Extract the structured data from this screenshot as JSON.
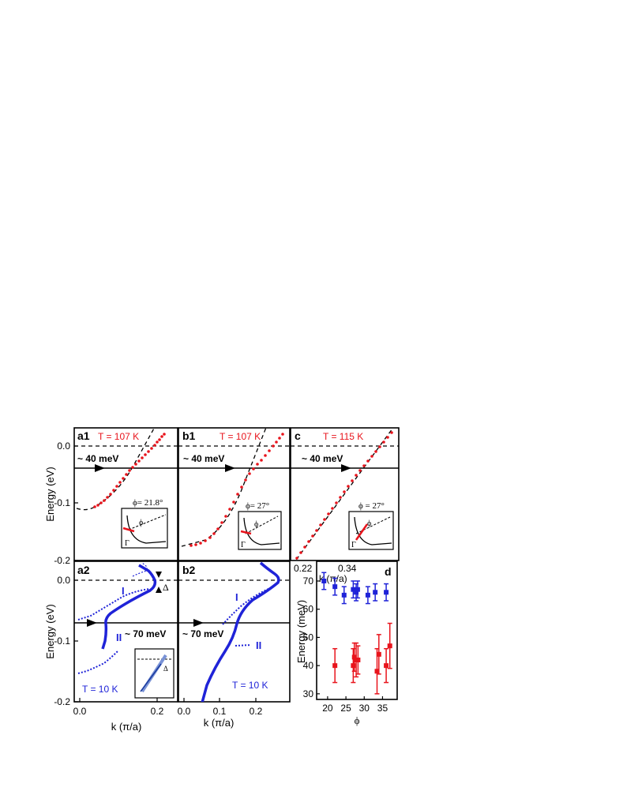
{
  "colors": {
    "red": "#e8141c",
    "blue": "#1f23d8",
    "lightblue": "#7a93d6",
    "navy": "#1a3ba0",
    "black": "#000000"
  },
  "labels": {
    "energy_ev": "Energy (eV)",
    "energy_mev": "Energy (meV)",
    "k_label": "k (π/a)",
    "k_label_b2": "k  (π/a)",
    "phi": "ϕ",
    "gamma": "Γ",
    "delta": "Δ",
    "mev40": "~ 40 meV",
    "mev70": "~ 70 meV",
    "roman1": "I",
    "roman2": "II"
  },
  "panels": {
    "a1": {
      "letter": "a1",
      "temp": "T = 107 K",
      "phi_text": "ϕ= 21.8°"
    },
    "b1": {
      "letter": "b1",
      "temp": "T = 107 K",
      "phi_text": "ϕ= 27°"
    },
    "c": {
      "letter": "c",
      "temp": "T = 115 K",
      "phi_text": "ϕ = 27°",
      "k_ticks": [
        "0.22",
        "0.34"
      ],
      "k_label": "k (π/a)"
    },
    "a2": {
      "letter": "a2",
      "temp": "T = 10 K"
    },
    "b2": {
      "letter": "b2",
      "temp": "T = 10 K"
    },
    "d": {
      "letter": "d"
    }
  },
  "ticks": {
    "energy_top": [
      "0.0",
      "-0.1",
      "-0.2"
    ],
    "energy_bottom": [
      "0.0",
      "-0.1",
      "-0.2"
    ],
    "k_a2": [
      "0.0",
      "0.2"
    ],
    "k_b2": [
      "0.0",
      "0.1",
      "0.2"
    ]
  },
  "chart_data": [
    {
      "type": "scatter",
      "panel": "a1",
      "xlabel": "",
      "ylabel": "Energy (eV)",
      "ylim": [
        -0.12,
        0.03
      ],
      "series": [
        {
          "color": "red",
          "x": [
            0.05,
            0.07,
            0.09,
            0.11,
            0.13,
            0.15,
            0.17,
            0.19,
            0.21,
            0.23,
            0.25
          ],
          "y": [
            -0.11,
            -0.1,
            -0.085,
            -0.068,
            -0.052,
            -0.036,
            -0.022,
            -0.008,
            0.0,
            0.008,
            0.016
          ]
        }
      ]
    },
    {
      "type": "scatter",
      "panel": "b1",
      "ylim": [
        -0.2,
        0.03
      ],
      "series": [
        {
          "color": "red",
          "x": [
            0.02,
            0.05,
            0.08,
            0.11,
            0.14,
            0.17,
            0.2,
            0.23,
            0.26
          ],
          "y": [
            -0.175,
            -0.16,
            -0.14,
            -0.11,
            -0.08,
            -0.05,
            -0.025,
            -0.005,
            0.015
          ]
        }
      ]
    },
    {
      "type": "scatter",
      "panel": "c",
      "xlabel": "k (π/a)",
      "xticks": [
        "0.22",
        "0.34"
      ],
      "ylim": [
        -0.2,
        0.03
      ],
      "series": [
        {
          "color": "red",
          "x": [
            0.22,
            0.24,
            0.26,
            0.28,
            0.3,
            0.32,
            0.34
          ],
          "y": [
            -0.2,
            -0.16,
            -0.12,
            -0.08,
            -0.045,
            -0.01,
            0.02
          ]
        }
      ]
    },
    {
      "type": "scatter",
      "panel": "a2",
      "xlabel": "k (π/a)",
      "ylabel": "Energy (eV)",
      "xlim": [
        0.0,
        0.24
      ],
      "ylim": [
        -0.2,
        0.01
      ],
      "annotations": [
        "I",
        "II",
        "~ 70 meV",
        "T = 10 K",
        "Δ"
      ]
    },
    {
      "type": "scatter",
      "panel": "b2",
      "xlabel": "k  (π/a)",
      "xlim": [
        0.0,
        0.27
      ],
      "ylim": [
        -0.2,
        0.01
      ],
      "annotations": [
        "I",
        "II",
        "~ 70 meV",
        "T = 10 K"
      ]
    },
    {
      "type": "scatter",
      "panel": "d",
      "xlabel": "ϕ",
      "ylabel": "Energy (meV)",
      "xticks": [
        20,
        25,
        30,
        35
      ],
      "yticks": [
        30,
        40,
        50,
        60,
        70
      ],
      "xlim": [
        17,
        39
      ],
      "ylim": [
        28,
        77
      ],
      "series": [
        {
          "color": "blue",
          "x": [
            19,
            22,
            24.5,
            27,
            27.8,
            28.2,
            31,
            33,
            36
          ],
          "y": [
            70,
            68,
            65,
            67,
            66,
            67,
            65,
            66,
            66
          ],
          "err": [
            3,
            3,
            3,
            3,
            3,
            3,
            3,
            3,
            3
          ]
        },
        {
          "color": "red",
          "x": [
            22,
            27,
            27.3,
            27.8,
            28.3,
            33.5,
            34,
            36,
            37
          ],
          "y": [
            40,
            40,
            43,
            42,
            42,
            38,
            44,
            40,
            47
          ],
          "err": [
            6,
            6,
            5,
            6,
            5,
            8,
            7,
            6,
            8
          ]
        }
      ]
    }
  ]
}
